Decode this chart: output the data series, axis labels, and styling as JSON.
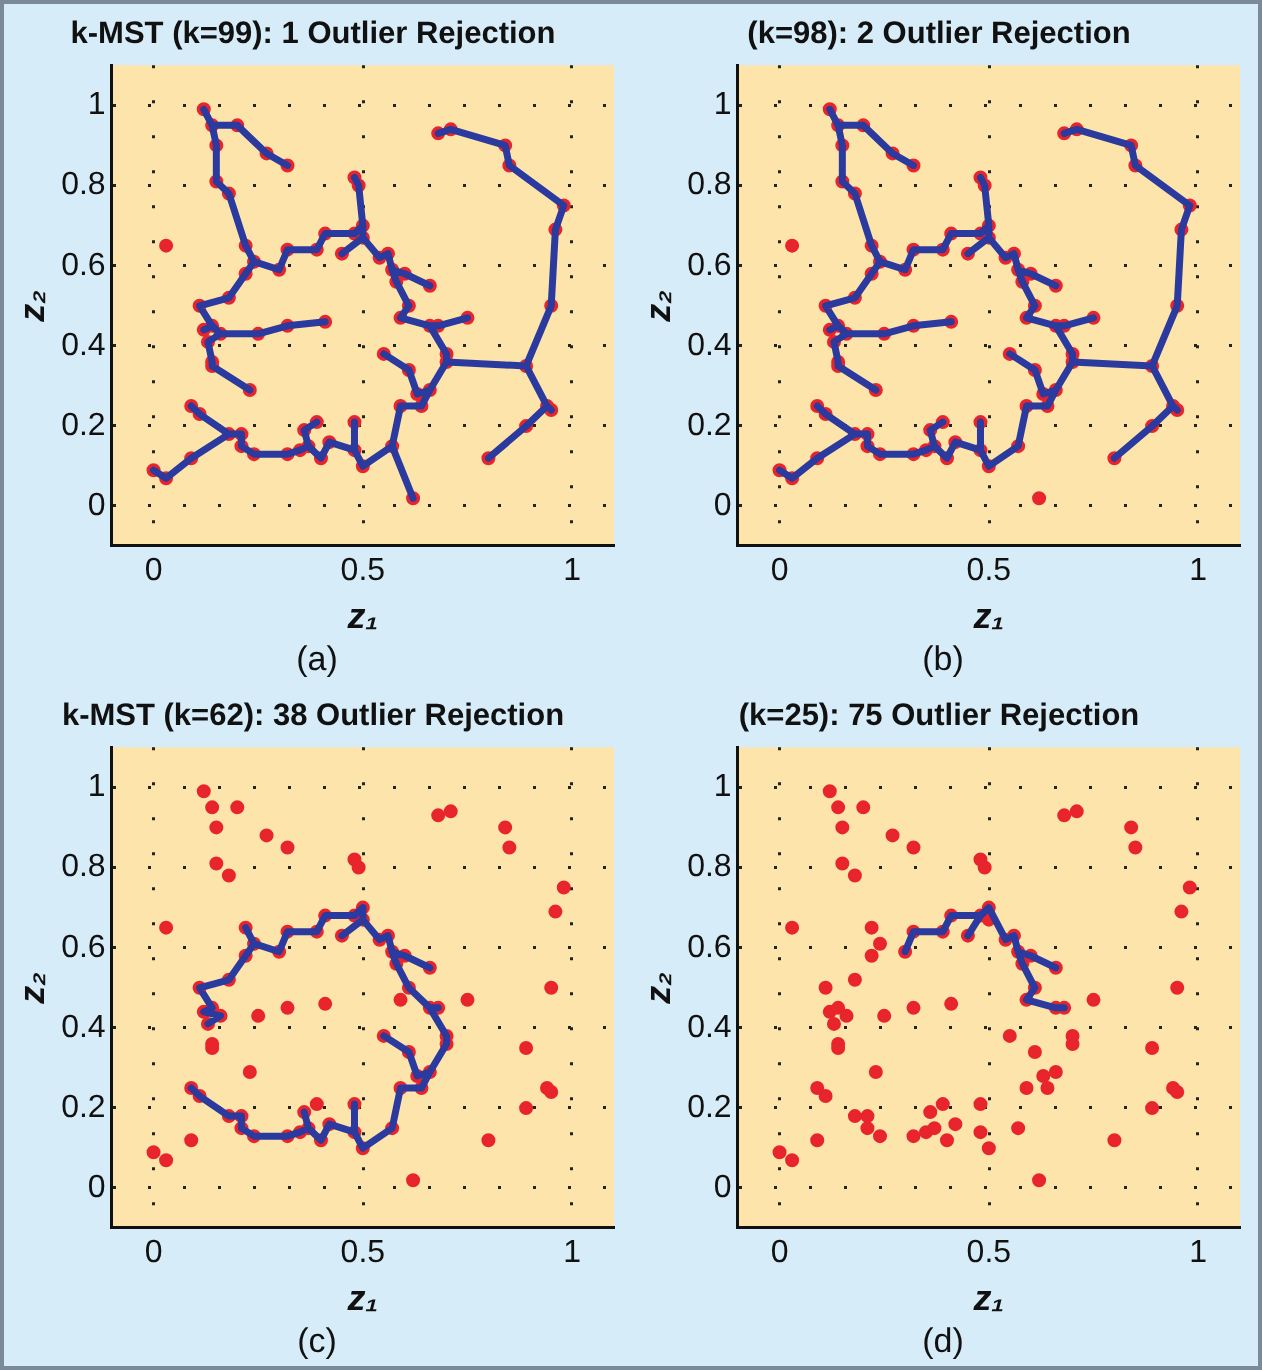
{
  "chart_data": [
    {
      "type": "scatter",
      "title": "k-MST (k=99): 1 Outlier Rejection",
      "xlabel": "z₁",
      "ylabel": "z₂",
      "annotations": [
        "(a)"
      ],
      "xlim": [
        -0.1,
        1.1
      ],
      "ylim": [
        -0.1,
        1.1
      ],
      "xticks": [
        0,
        0.5,
        1
      ],
      "yticks": [
        0,
        0.2,
        0.4,
        0.6,
        0.8,
        1
      ],
      "grid": true,
      "legend": false,
      "series": [
        {
          "type": "line",
          "marker": "none",
          "color": "#2b3a9e",
          "x": [
            0.32,
            0.27,
            0.2,
            0.14,
            0.12,
            null,
            0.14,
            0.15,
            0.15,
            0.18,
            0.22,
            0.24,
            0.22,
            0.18,
            0.11,
            0.14,
            0.12,
            null,
            0.24,
            0.3,
            0.32,
            0.39,
            0.41,
            0.48,
            0.5,
            0.5,
            0.45,
            null,
            0.5,
            0.49,
            0.48,
            null,
            0.5,
            0.54,
            0.56,
            0.57,
            0.58,
            0.61,
            0.59,
            0.66,
            0.68,
            0.75,
            null,
            0.57,
            0.6,
            0.66,
            null,
            0.66,
            0.7,
            0.7,
            0.66,
            0.64,
            0.59,
            0.57,
            0.5,
            0.48,
            0.42,
            0.4,
            0.37,
            0.35,
            0.32,
            0.24,
            0.21,
            0.21,
            0.18,
            0.11,
            0.09,
            null,
            0.18,
            0.09,
            0.03,
            0,
            null,
            0.66,
            0.63,
            0.61,
            0.55,
            null,
            0.57,
            0.62,
            null,
            0.48,
            0.48,
            null,
            0.37,
            0.36,
            0.39,
            null,
            0.7,
            0.89,
            0.95,
            0.96,
            0.98,
            0.85,
            0.84,
            0.71,
            0.68,
            null,
            0.89,
            0.94,
            0.95,
            null,
            0.94,
            0.89,
            0.8,
            null,
            0.14,
            0.16,
            0.25,
            0.32,
            0.41,
            null,
            0.16,
            0.13,
            0.14,
            0.14,
            0.23
          ],
          "values": [
            0.85,
            0.88,
            0.95,
            0.95,
            0.99,
            null,
            0.95,
            0.9,
            0.81,
            0.78,
            0.65,
            0.61,
            0.58,
            0.52,
            0.5,
            0.45,
            0.44,
            null,
            0.61,
            0.59,
            0.64,
            0.64,
            0.68,
            0.68,
            0.7,
            0.67,
            0.63,
            null,
            0.7,
            0.8,
            0.82,
            null,
            0.67,
            0.62,
            0.63,
            0.59,
            0.56,
            0.5,
            0.47,
            0.45,
            0.45,
            0.47,
            null,
            0.59,
            0.58,
            0.55,
            null,
            0.45,
            0.38,
            0.36,
            0.29,
            0.25,
            0.25,
            0.15,
            0.1,
            0.14,
            0.16,
            0.12,
            0.15,
            0.14,
            0.13,
            0.13,
            0.15,
            0.18,
            0.18,
            0.23,
            0.25,
            null,
            0.18,
            0.12,
            0.07,
            0.09,
            null,
            0.29,
            0.28,
            0.34,
            0.38,
            null,
            0.15,
            0.02,
            null,
            0.14,
            0.21,
            null,
            0.15,
            0.19,
            0.21,
            null,
            0.36,
            0.35,
            0.5,
            0.69,
            0.75,
            0.85,
            0.9,
            0.94,
            0.93,
            null,
            0.35,
            0.25,
            0.24,
            null,
            0.25,
            0.2,
            0.12,
            null,
            0.45,
            0.43,
            0.43,
            0.45,
            0.46,
            null,
            0.43,
            0.41,
            0.36,
            0.35,
            0.29
          ]
        },
        {
          "type": "scatter",
          "color": "#e8242c",
          "x": [
            0.12,
            0.14,
            0.2,
            0.15,
            0.27,
            0.32,
            0.15,
            0.18,
            0.22,
            0.24,
            0.22,
            0.3,
            0.18,
            0.11,
            0.32,
            0.39,
            0.41,
            0.45,
            0.48,
            0.5,
            0.5,
            0.48,
            0.49,
            0.54,
            0.56,
            0.57,
            0.58,
            0.6,
            0.66,
            0.61,
            0.59,
            0.66,
            0.68,
            0.75,
            0.7,
            0.7,
            0.66,
            0.63,
            0.64,
            0.61,
            0.55,
            0.59,
            0.57,
            0.62,
            0.68,
            0.71,
            0.84,
            0.85,
            0.98,
            0.96,
            0.95,
            0.89,
            0.95,
            0.94,
            0.89,
            0.8,
            0.12,
            0.14,
            0.16,
            0.13,
            0.14,
            0.14,
            0.23,
            0.25,
            0.32,
            0.41,
            0.09,
            0.11,
            0.18,
            0.21,
            0.21,
            0.24,
            0.09,
            0,
            0.03,
            0.32,
            0.35,
            0.36,
            0.39,
            0.37,
            0.4,
            0.42,
            0.48,
            0.48,
            0.5,
            0.03
          ],
          "values": [
            0.99,
            0.95,
            0.95,
            0.9,
            0.88,
            0.85,
            0.81,
            0.78,
            0.65,
            0.61,
            0.58,
            0.59,
            0.52,
            0.5,
            0.64,
            0.64,
            0.68,
            0.63,
            0.68,
            0.7,
            0.67,
            0.82,
            0.8,
            0.62,
            0.63,
            0.59,
            0.56,
            0.58,
            0.55,
            0.5,
            0.47,
            0.45,
            0.45,
            0.47,
            0.38,
            0.36,
            0.29,
            0.28,
            0.25,
            0.34,
            0.38,
            0.25,
            0.15,
            0.02,
            0.93,
            0.94,
            0.9,
            0.85,
            0.75,
            0.69,
            0.5,
            0.35,
            0.24,
            0.25,
            0.2,
            0.12,
            0.44,
            0.45,
            0.43,
            0.41,
            0.36,
            0.35,
            0.29,
            0.43,
            0.45,
            0.46,
            0.25,
            0.23,
            0.18,
            0.18,
            0.15,
            0.13,
            0.12,
            0.09,
            0.07,
            0.13,
            0.14,
            0.19,
            0.21,
            0.15,
            0.12,
            0.16,
            0.14,
            0.21,
            0.1,
            0.65
          ]
        }
      ]
    },
    {
      "type": "scatter",
      "title": "(k=98): 2 Outlier Rejection",
      "xlabel": "z₁",
      "ylabel": "z₂",
      "annotations": [
        "(b)"
      ],
      "xlim": [
        -0.1,
        1.1
      ],
      "ylim": [
        -0.1,
        1.1
      ],
      "xticks": [
        0,
        0.5,
        1
      ],
      "yticks": [
        0,
        0.2,
        0.4,
        0.6,
        0.8,
        1
      ],
      "grid": true,
      "legend": false,
      "series": [
        {
          "type": "line",
          "marker": "none",
          "color": "#2b3a9e",
          "x": [
            0.32,
            0.27,
            0.2,
            0.14,
            0.12,
            null,
            0.14,
            0.15,
            0.15,
            0.18,
            0.22,
            0.24,
            0.22,
            0.18,
            0.11,
            0.14,
            0.12,
            null,
            0.24,
            0.3,
            0.32,
            0.39,
            0.41,
            0.48,
            0.5,
            0.5,
            0.45,
            null,
            0.5,
            0.49,
            0.48,
            null,
            0.5,
            0.54,
            0.56,
            0.57,
            0.58,
            0.61,
            0.59,
            0.66,
            0.68,
            0.75,
            null,
            0.57,
            0.6,
            0.66,
            null,
            0.66,
            0.7,
            0.7,
            0.66,
            0.64,
            0.59,
            0.57,
            0.5,
            0.48,
            0.42,
            0.4,
            0.37,
            0.35,
            0.32,
            0.24,
            0.21,
            0.21,
            0.18,
            0.11,
            0.09,
            null,
            0.18,
            0.09,
            0.03,
            0,
            null,
            0.66,
            0.63,
            0.61,
            0.55,
            null,
            0.48,
            0.48,
            null,
            0.37,
            0.36,
            0.39,
            null,
            0.7,
            0.89,
            0.95,
            0.96,
            0.98,
            0.85,
            0.84,
            0.71,
            0.68,
            null,
            0.89,
            0.94,
            0.95,
            null,
            0.94,
            0.89,
            0.8,
            null,
            0.14,
            0.16,
            0.25,
            0.32,
            0.41,
            null,
            0.16,
            0.13,
            0.14,
            0.14,
            0.23
          ],
          "values": [
            0.85,
            0.88,
            0.95,
            0.95,
            0.99,
            null,
            0.95,
            0.9,
            0.81,
            0.78,
            0.65,
            0.61,
            0.58,
            0.52,
            0.5,
            0.45,
            0.44,
            null,
            0.61,
            0.59,
            0.64,
            0.64,
            0.68,
            0.68,
            0.7,
            0.67,
            0.63,
            null,
            0.7,
            0.8,
            0.82,
            null,
            0.67,
            0.62,
            0.63,
            0.59,
            0.56,
            0.5,
            0.47,
            0.45,
            0.45,
            0.47,
            null,
            0.59,
            0.58,
            0.55,
            null,
            0.45,
            0.38,
            0.36,
            0.29,
            0.25,
            0.25,
            0.15,
            0.1,
            0.14,
            0.16,
            0.12,
            0.15,
            0.14,
            0.13,
            0.13,
            0.15,
            0.18,
            0.18,
            0.23,
            0.25,
            null,
            0.18,
            0.12,
            0.07,
            0.09,
            null,
            0.29,
            0.28,
            0.34,
            0.38,
            null,
            0.14,
            0.21,
            null,
            0.15,
            0.19,
            0.21,
            null,
            0.36,
            0.35,
            0.5,
            0.69,
            0.75,
            0.85,
            0.9,
            0.94,
            0.93,
            null,
            0.35,
            0.25,
            0.24,
            null,
            0.25,
            0.2,
            0.12,
            null,
            0.45,
            0.43,
            0.43,
            0.45,
            0.46,
            null,
            0.43,
            0.41,
            0.36,
            0.35,
            0.29
          ]
        },
        {
          "type": "scatter",
          "color": "#e8242c",
          "x": [
            0.12,
            0.14,
            0.2,
            0.15,
            0.27,
            0.32,
            0.15,
            0.18,
            0.22,
            0.24,
            0.22,
            0.3,
            0.18,
            0.11,
            0.32,
            0.39,
            0.41,
            0.45,
            0.48,
            0.5,
            0.5,
            0.48,
            0.49,
            0.54,
            0.56,
            0.57,
            0.58,
            0.6,
            0.66,
            0.61,
            0.59,
            0.66,
            0.68,
            0.75,
            0.7,
            0.7,
            0.66,
            0.63,
            0.64,
            0.61,
            0.55,
            0.59,
            0.57,
            0.62,
            0.68,
            0.71,
            0.84,
            0.85,
            0.98,
            0.96,
            0.95,
            0.89,
            0.95,
            0.94,
            0.89,
            0.8,
            0.12,
            0.14,
            0.16,
            0.13,
            0.14,
            0.14,
            0.23,
            0.25,
            0.32,
            0.41,
            0.09,
            0.11,
            0.18,
            0.21,
            0.21,
            0.24,
            0.09,
            0,
            0.03,
            0.32,
            0.35,
            0.36,
            0.39,
            0.37,
            0.4,
            0.42,
            0.48,
            0.48,
            0.5,
            0.03
          ],
          "values": [
            0.99,
            0.95,
            0.95,
            0.9,
            0.88,
            0.85,
            0.81,
            0.78,
            0.65,
            0.61,
            0.58,
            0.59,
            0.52,
            0.5,
            0.64,
            0.64,
            0.68,
            0.63,
            0.68,
            0.7,
            0.67,
            0.82,
            0.8,
            0.62,
            0.63,
            0.59,
            0.56,
            0.58,
            0.55,
            0.5,
            0.47,
            0.45,
            0.45,
            0.47,
            0.38,
            0.36,
            0.29,
            0.28,
            0.25,
            0.34,
            0.38,
            0.25,
            0.15,
            0.02,
            0.93,
            0.94,
            0.9,
            0.85,
            0.75,
            0.69,
            0.5,
            0.35,
            0.24,
            0.25,
            0.2,
            0.12,
            0.44,
            0.45,
            0.43,
            0.41,
            0.36,
            0.35,
            0.29,
            0.43,
            0.45,
            0.46,
            0.25,
            0.23,
            0.18,
            0.18,
            0.15,
            0.13,
            0.12,
            0.09,
            0.07,
            0.13,
            0.14,
            0.19,
            0.21,
            0.15,
            0.12,
            0.16,
            0.14,
            0.21,
            0.1,
            0.65
          ]
        }
      ]
    },
    {
      "type": "scatter",
      "title": "k-MST (k=62): 38 Outlier Rejection",
      "xlabel": "z₁",
      "ylabel": "z₂",
      "annotations": [
        "(c)"
      ],
      "xlim": [
        -0.1,
        1.1
      ],
      "ylim": [
        -0.1,
        1.1
      ],
      "xticks": [
        0,
        0.5,
        1
      ],
      "yticks": [
        0,
        0.2,
        0.4,
        0.6,
        0.8,
        1
      ],
      "grid": true,
      "legend": false,
      "series": [
        {
          "type": "line",
          "marker": "none",
          "color": "#2b3a9e",
          "x": [
            0.09,
            0.11,
            0.18,
            0.21,
            0.21,
            0.24,
            0.32,
            0.35,
            0.37,
            0.4,
            0.42,
            0.48,
            0.5,
            0.57,
            0.59,
            0.64,
            0.66,
            0.7,
            0.7,
            0.66,
            0.61,
            0.58,
            0.57,
            0.56,
            0.54,
            0.5,
            0.5,
            0.48,
            0.41,
            0.39,
            0.32,
            0.3,
            0.24,
            0.22,
            null,
            0.24,
            0.22,
            0.18,
            0.11,
            0.14,
            0.12,
            0.16,
            0.13,
            null,
            0.36,
            0.37,
            null,
            0.48,
            0.48,
            null,
            0.66,
            0.63,
            0.61,
            0.55,
            null,
            0.66,
            0.68,
            null,
            0.57,
            0.6,
            0.66,
            null,
            0.45,
            0.5
          ],
          "values": [
            0.25,
            0.23,
            0.18,
            0.18,
            0.15,
            0.13,
            0.13,
            0.14,
            0.15,
            0.12,
            0.16,
            0.14,
            0.1,
            0.15,
            0.25,
            0.25,
            0.29,
            0.36,
            0.38,
            0.45,
            0.5,
            0.56,
            0.59,
            0.63,
            0.62,
            0.67,
            0.7,
            0.68,
            0.68,
            0.64,
            0.64,
            0.59,
            0.61,
            0.65,
            null,
            0.61,
            0.58,
            0.52,
            0.5,
            0.45,
            0.44,
            0.43,
            0.41,
            null,
            0.19,
            0.15,
            null,
            0.21,
            0.14,
            null,
            0.29,
            0.28,
            0.34,
            0.38,
            null,
            0.45,
            0.45,
            null,
            0.59,
            0.58,
            0.55,
            null,
            0.63,
            0.67
          ]
        },
        {
          "type": "scatter",
          "color": "#e8242c",
          "x": [
            0.12,
            0.14,
            0.2,
            0.15,
            0.27,
            0.32,
            0.15,
            0.18,
            0.22,
            0.24,
            0.22,
            0.3,
            0.18,
            0.11,
            0.32,
            0.39,
            0.41,
            0.45,
            0.48,
            0.5,
            0.5,
            0.48,
            0.49,
            0.54,
            0.56,
            0.57,
            0.58,
            0.6,
            0.66,
            0.61,
            0.59,
            0.66,
            0.68,
            0.75,
            0.7,
            0.7,
            0.66,
            0.63,
            0.64,
            0.61,
            0.55,
            0.59,
            0.57,
            0.62,
            0.68,
            0.71,
            0.84,
            0.85,
            0.98,
            0.96,
            0.95,
            0.89,
            0.95,
            0.94,
            0.89,
            0.8,
            0.12,
            0.14,
            0.16,
            0.13,
            0.14,
            0.14,
            0.23,
            0.25,
            0.32,
            0.41,
            0.09,
            0.11,
            0.18,
            0.21,
            0.21,
            0.24,
            0.09,
            0,
            0.03,
            0.32,
            0.35,
            0.36,
            0.39,
            0.37,
            0.4,
            0.42,
            0.48,
            0.48,
            0.5,
            0.03
          ],
          "values": [
            0.99,
            0.95,
            0.95,
            0.9,
            0.88,
            0.85,
            0.81,
            0.78,
            0.65,
            0.61,
            0.58,
            0.59,
            0.52,
            0.5,
            0.64,
            0.64,
            0.68,
            0.63,
            0.68,
            0.7,
            0.67,
            0.82,
            0.8,
            0.62,
            0.63,
            0.59,
            0.56,
            0.58,
            0.55,
            0.5,
            0.47,
            0.45,
            0.45,
            0.47,
            0.38,
            0.36,
            0.29,
            0.28,
            0.25,
            0.34,
            0.38,
            0.25,
            0.15,
            0.02,
            0.93,
            0.94,
            0.9,
            0.85,
            0.75,
            0.69,
            0.5,
            0.35,
            0.24,
            0.25,
            0.2,
            0.12,
            0.44,
            0.45,
            0.43,
            0.41,
            0.36,
            0.35,
            0.29,
            0.43,
            0.45,
            0.46,
            0.25,
            0.23,
            0.18,
            0.18,
            0.15,
            0.13,
            0.12,
            0.09,
            0.07,
            0.13,
            0.14,
            0.19,
            0.21,
            0.15,
            0.12,
            0.16,
            0.14,
            0.21,
            0.1,
            0.65
          ]
        }
      ]
    },
    {
      "type": "scatter",
      "title": "(k=25): 75 Outlier Rejection",
      "xlabel": "z₁",
      "ylabel": "z₂",
      "annotations": [
        "(d)"
      ],
      "xlim": [
        -0.1,
        1.1
      ],
      "ylim": [
        -0.1,
        1.1
      ],
      "xticks": [
        0,
        0.5,
        1
      ],
      "yticks": [
        0,
        0.2,
        0.4,
        0.6,
        0.8,
        1
      ],
      "grid": true,
      "legend": false,
      "series": [
        {
          "type": "line",
          "marker": "none",
          "color": "#2b3a9e",
          "x": [
            0.3,
            0.32,
            0.39,
            0.41,
            0.48,
            0.5,
            0.54,
            0.56,
            0.57,
            0.58,
            0.61,
            0.59,
            0.66,
            0.68,
            null,
            0.57,
            0.6,
            0.66,
            null,
            0.45,
            0.48
          ],
          "values": [
            0.59,
            0.64,
            0.64,
            0.68,
            0.68,
            0.7,
            0.62,
            0.63,
            0.59,
            0.56,
            0.5,
            0.47,
            0.45,
            0.45,
            null,
            0.59,
            0.58,
            0.55,
            null,
            0.63,
            0.68
          ]
        },
        {
          "type": "scatter",
          "color": "#e8242c",
          "x": [
            0.12,
            0.14,
            0.2,
            0.15,
            0.27,
            0.32,
            0.15,
            0.18,
            0.22,
            0.24,
            0.22,
            0.3,
            0.18,
            0.11,
            0.32,
            0.39,
            0.41,
            0.45,
            0.48,
            0.5,
            0.5,
            0.48,
            0.49,
            0.54,
            0.56,
            0.57,
            0.58,
            0.6,
            0.66,
            0.61,
            0.59,
            0.66,
            0.68,
            0.75,
            0.7,
            0.7,
            0.66,
            0.63,
            0.64,
            0.61,
            0.55,
            0.59,
            0.57,
            0.62,
            0.68,
            0.71,
            0.84,
            0.85,
            0.98,
            0.96,
            0.95,
            0.89,
            0.95,
            0.94,
            0.89,
            0.8,
            0.12,
            0.14,
            0.16,
            0.13,
            0.14,
            0.14,
            0.23,
            0.25,
            0.32,
            0.41,
            0.09,
            0.11,
            0.18,
            0.21,
            0.21,
            0.24,
            0.09,
            0,
            0.03,
            0.32,
            0.35,
            0.36,
            0.39,
            0.37,
            0.4,
            0.42,
            0.48,
            0.48,
            0.5,
            0.03
          ],
          "values": [
            0.99,
            0.95,
            0.95,
            0.9,
            0.88,
            0.85,
            0.81,
            0.78,
            0.65,
            0.61,
            0.58,
            0.59,
            0.52,
            0.5,
            0.64,
            0.64,
            0.68,
            0.63,
            0.68,
            0.7,
            0.67,
            0.82,
            0.8,
            0.62,
            0.63,
            0.59,
            0.56,
            0.58,
            0.55,
            0.5,
            0.47,
            0.45,
            0.45,
            0.47,
            0.38,
            0.36,
            0.29,
            0.28,
            0.25,
            0.34,
            0.38,
            0.25,
            0.15,
            0.02,
            0.93,
            0.94,
            0.9,
            0.85,
            0.75,
            0.69,
            0.5,
            0.35,
            0.24,
            0.25,
            0.2,
            0.12,
            0.44,
            0.45,
            0.43,
            0.41,
            0.36,
            0.35,
            0.29,
            0.43,
            0.45,
            0.46,
            0.25,
            0.23,
            0.18,
            0.18,
            0.15,
            0.13,
            0.12,
            0.09,
            0.07,
            0.13,
            0.14,
            0.19,
            0.21,
            0.15,
            0.12,
            0.16,
            0.14,
            0.21,
            0.1,
            0.65
          ]
        }
      ]
    }
  ]
}
